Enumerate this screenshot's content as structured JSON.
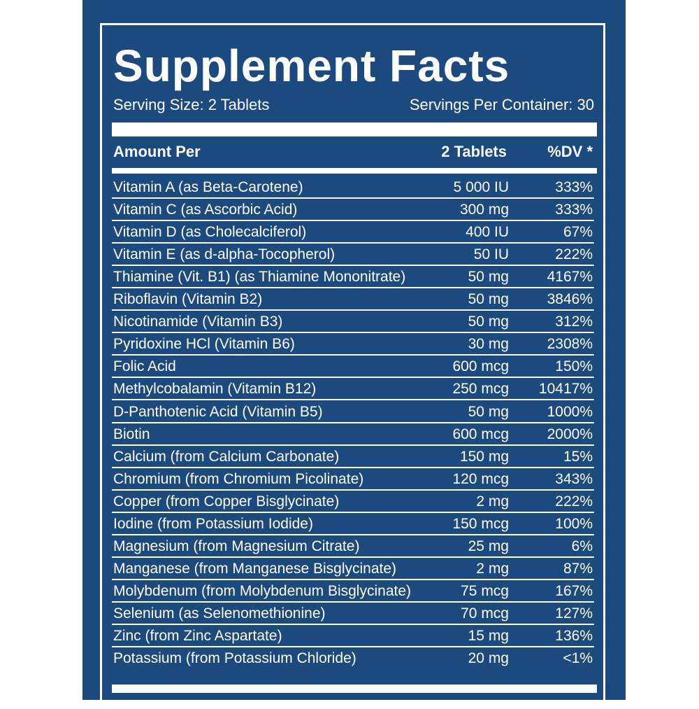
{
  "title": "Supplement Facts",
  "serving_size": "Serving Size: 2 Tablets",
  "servings_per_container": "Servings Per Container: 30",
  "table": {
    "header": [
      "Amount Per",
      "2 Tablets",
      "%DV *"
    ],
    "rows": [
      [
        "Vitamin A (as Beta-Carotene)",
        "5 000 IU",
        "333%"
      ],
      [
        "Vitamin C (as Ascorbic Acid)",
        "300 mg",
        "333%"
      ],
      [
        "Vitamin D (as Cholecalciferol)",
        "400 IU",
        "67%"
      ],
      [
        "Vitamin E (as d-alpha-Tocopherol)",
        "50 IU",
        "222%"
      ],
      [
        "Thiamine (Vit. B1) (as Thiamine Mononitrate)",
        "50 mg",
        "4167%"
      ],
      [
        "Riboflavin (Vitamin B2)",
        "50 mg",
        "3846%"
      ],
      [
        "Nicotinamide (Vitamin B3)",
        "50 mg",
        "312%"
      ],
      [
        "Pyridoxine HCl (Vitamin B6)",
        "30 mg",
        "2308%"
      ],
      [
        "Folic Acid",
        "600 mcg",
        "150%"
      ],
      [
        "Methylcobalamin (Vitamin B12)",
        "250 mcg",
        "10417%"
      ],
      [
        "D-Panthotenic Acid (Vitamin B5)",
        "50 mg",
        "1000%"
      ],
      [
        "Biotin",
        "600 mcg",
        "2000%"
      ],
      [
        "Calcium (from Calcium Carbonate)",
        "150 mg",
        "15%"
      ],
      [
        "Chromium (from Chromium Picolinate)",
        "120 mcg",
        "343%"
      ],
      [
        "Copper (from Copper Bisglycinate)",
        "2 mg",
        "222%"
      ],
      [
        "Iodine (from Potassium Iodide)",
        "150 mcg",
        "100%"
      ],
      [
        "Magnesium (from Magnesium Citrate)",
        "25 mg",
        "6%"
      ],
      [
        "Manganese (from Manganese Bisglycinate)",
        "2 mg",
        "87%"
      ],
      [
        "Molybdenum (from Molybdenum Bisglycinate)",
        "75 mcg",
        "167%"
      ],
      [
        "Selenium (as Selenomethionine)",
        "70 mcg",
        "127%"
      ],
      [
        "Zinc (from Zinc Aspartate)",
        "15 mg",
        "136%"
      ],
      [
        "Potassium (from Potassium Chloride)",
        "20 mg",
        "<1%"
      ]
    ]
  }
}
